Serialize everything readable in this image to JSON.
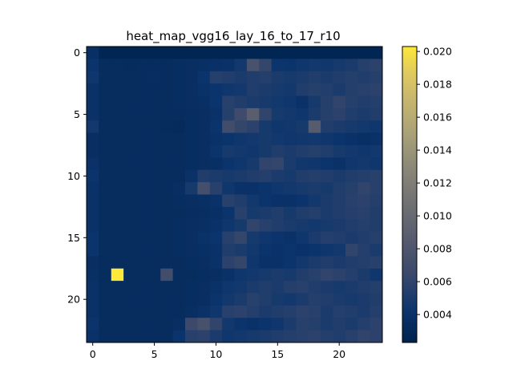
{
  "chart_data": {
    "type": "heatmap",
    "title": "heat_map_vgg16_lay_16_to_17_r10",
    "xlabel": "",
    "ylabel": "",
    "rows": 24,
    "cols": 24,
    "x_ticks": [
      0,
      5,
      10,
      15,
      20
    ],
    "y_ticks": [
      0,
      5,
      10,
      15,
      20
    ],
    "colormap": "cividis",
    "colorbar_range": [
      0.0023,
      0.0203
    ],
    "colorbar_ticks": [
      "0.004",
      "0.006",
      "0.008",
      "0.010",
      "0.012",
      "0.014",
      "0.016",
      "0.018",
      "0.020"
    ],
    "colorbar_tick_values": [
      0.004,
      0.006,
      0.008,
      0.01,
      0.012,
      0.014,
      0.016,
      0.018,
      0.02
    ],
    "grid": false,
    "values": [
      [
        0.0038,
        0.0027,
        0.0027,
        0.0027,
        0.0027,
        0.0027,
        0.0027,
        0.0027,
        0.0027,
        0.0027,
        0.0027,
        0.0027,
        0.0027,
        0.0027,
        0.0027,
        0.0027,
        0.0027,
        0.0027,
        0.0027,
        0.0027,
        0.0027,
        0.0027,
        0.0027,
        0.0027
      ],
      [
        0.0042,
        0.0034,
        0.0034,
        0.0033,
        0.0034,
        0.0034,
        0.0034,
        0.0035,
        0.0036,
        0.0038,
        0.0039,
        0.004,
        0.0046,
        0.0075,
        0.0062,
        0.0043,
        0.0042,
        0.0044,
        0.0046,
        0.0045,
        0.0048,
        0.005,
        0.0055,
        0.0058
      ],
      [
        0.0044,
        0.0034,
        0.0034,
        0.0034,
        0.0034,
        0.0035,
        0.0034,
        0.0035,
        0.0036,
        0.0042,
        0.0055,
        0.0052,
        0.005,
        0.0052,
        0.0054,
        0.005,
        0.0048,
        0.005,
        0.0052,
        0.005,
        0.0052,
        0.0054,
        0.0052,
        0.0055
      ],
      [
        0.004,
        0.0034,
        0.0034,
        0.0034,
        0.0034,
        0.0034,
        0.0034,
        0.0035,
        0.0036,
        0.004,
        0.0042,
        0.0044,
        0.0046,
        0.0052,
        0.005,
        0.0048,
        0.0046,
        0.0052,
        0.0055,
        0.0053,
        0.005,
        0.0054,
        0.0056,
        0.0058
      ],
      [
        0.004,
        0.0034,
        0.0034,
        0.0034,
        0.0034,
        0.0034,
        0.0034,
        0.0035,
        0.0036,
        0.0038,
        0.0042,
        0.0056,
        0.0052,
        0.005,
        0.0048,
        0.0046,
        0.0044,
        0.004,
        0.0048,
        0.0055,
        0.006,
        0.0055,
        0.0052,
        0.0054
      ],
      [
        0.004,
        0.0034,
        0.0034,
        0.0034,
        0.0034,
        0.0034,
        0.0034,
        0.0034,
        0.0035,
        0.0036,
        0.004,
        0.0055,
        0.0068,
        0.0088,
        0.006,
        0.0048,
        0.0046,
        0.0044,
        0.005,
        0.0055,
        0.0058,
        0.0052,
        0.005,
        0.0052
      ],
      [
        0.0046,
        0.0034,
        0.0034,
        0.0034,
        0.0034,
        0.0034,
        0.0033,
        0.0032,
        0.0035,
        0.0036,
        0.0042,
        0.007,
        0.0062,
        0.0058,
        0.0048,
        0.0044,
        0.0045,
        0.0048,
        0.0085,
        0.0052,
        0.005,
        0.0048,
        0.0046,
        0.0044
      ],
      [
        0.0036,
        0.0034,
        0.0034,
        0.0034,
        0.0034,
        0.0034,
        0.0034,
        0.0034,
        0.0035,
        0.0036,
        0.004,
        0.0042,
        0.0044,
        0.0046,
        0.0048,
        0.0046,
        0.0044,
        0.0045,
        0.0046,
        0.0044,
        0.0042,
        0.004,
        0.0038,
        0.004
      ],
      [
        0.0036,
        0.0034,
        0.0034,
        0.0034,
        0.0034,
        0.0034,
        0.0034,
        0.0034,
        0.0035,
        0.0036,
        0.0042,
        0.0048,
        0.0046,
        0.0044,
        0.0048,
        0.0052,
        0.005,
        0.0052,
        0.0055,
        0.0052,
        0.0048,
        0.0046,
        0.0044,
        0.0046
      ],
      [
        0.004,
        0.0034,
        0.0034,
        0.0034,
        0.0034,
        0.0034,
        0.0034,
        0.0034,
        0.0035,
        0.0036,
        0.0038,
        0.0042,
        0.0044,
        0.0048,
        0.006,
        0.0062,
        0.005,
        0.0045,
        0.0044,
        0.0042,
        0.004,
        0.0044,
        0.0046,
        0.0044
      ],
      [
        0.0042,
        0.0034,
        0.0034,
        0.0034,
        0.0034,
        0.0034,
        0.0034,
        0.0034,
        0.004,
        0.0052,
        0.005,
        0.0048,
        0.005,
        0.0052,
        0.0054,
        0.005,
        0.0048,
        0.0052,
        0.0054,
        0.0052,
        0.005,
        0.0052,
        0.0054,
        0.0056
      ],
      [
        0.004,
        0.0034,
        0.0034,
        0.0034,
        0.0034,
        0.0034,
        0.0034,
        0.0036,
        0.0048,
        0.0072,
        0.0056,
        0.0044,
        0.004,
        0.004,
        0.0042,
        0.0044,
        0.0046,
        0.0048,
        0.005,
        0.0048,
        0.0052,
        0.0055,
        0.006,
        0.0056
      ],
      [
        0.004,
        0.0034,
        0.0034,
        0.0034,
        0.0034,
        0.0034,
        0.0034,
        0.0035,
        0.0036,
        0.0038,
        0.004,
        0.0056,
        0.0052,
        0.0046,
        0.0042,
        0.004,
        0.004,
        0.0042,
        0.0046,
        0.005,
        0.0052,
        0.0056,
        0.0058,
        0.0054
      ],
      [
        0.004,
        0.0034,
        0.0034,
        0.0034,
        0.0034,
        0.0034,
        0.0034,
        0.0034,
        0.0035,
        0.0036,
        0.0038,
        0.0042,
        0.0056,
        0.0048,
        0.005,
        0.0052,
        0.0048,
        0.0052,
        0.0054,
        0.005,
        0.0052,
        0.0054,
        0.0056,
        0.0052
      ],
      [
        0.004,
        0.0034,
        0.0034,
        0.0034,
        0.0034,
        0.0034,
        0.0034,
        0.0035,
        0.0036,
        0.0038,
        0.004,
        0.0044,
        0.0048,
        0.006,
        0.0056,
        0.0052,
        0.005,
        0.0048,
        0.0046,
        0.0048,
        0.005,
        0.0052,
        0.0054,
        0.0052
      ],
      [
        0.0042,
        0.0034,
        0.0034,
        0.0034,
        0.0034,
        0.0034,
        0.0034,
        0.0035,
        0.0036,
        0.004,
        0.0042,
        0.0056,
        0.0062,
        0.0048,
        0.0044,
        0.0042,
        0.004,
        0.0044,
        0.005,
        0.0054,
        0.0052,
        0.005,
        0.0052,
        0.0055
      ],
      [
        0.0042,
        0.0034,
        0.0034,
        0.0034,
        0.0034,
        0.0034,
        0.0034,
        0.0035,
        0.0036,
        0.0038,
        0.004,
        0.0052,
        0.005,
        0.0046,
        0.0042,
        0.004,
        0.0042,
        0.004,
        0.0042,
        0.0044,
        0.0046,
        0.006,
        0.0054,
        0.005
      ],
      [
        0.0036,
        0.0034,
        0.0034,
        0.0034,
        0.0034,
        0.0034,
        0.0034,
        0.0034,
        0.0035,
        0.0036,
        0.004,
        0.0058,
        0.0062,
        0.0044,
        0.004,
        0.004,
        0.0042,
        0.0046,
        0.005,
        0.0052,
        0.005,
        0.0052,
        0.0054,
        0.0056
      ],
      [
        0.0038,
        0.0034,
        0.0203,
        0.0034,
        0.0034,
        0.0034,
        0.007,
        0.0034,
        0.0034,
        0.0035,
        0.0036,
        0.004,
        0.0044,
        0.0046,
        0.0048,
        0.005,
        0.0048,
        0.0052,
        0.0056,
        0.006,
        0.0058,
        0.0054,
        0.005,
        0.0044
      ],
      [
        0.004,
        0.0034,
        0.0034,
        0.0034,
        0.0034,
        0.0034,
        0.0034,
        0.0034,
        0.0035,
        0.0036,
        0.004,
        0.0044,
        0.0046,
        0.005,
        0.0052,
        0.005,
        0.0054,
        0.0056,
        0.0052,
        0.005,
        0.0048,
        0.005,
        0.0052,
        0.0054
      ],
      [
        0.004,
        0.0034,
        0.0034,
        0.0034,
        0.0034,
        0.0034,
        0.0034,
        0.0034,
        0.0035,
        0.0036,
        0.0042,
        0.0046,
        0.005,
        0.0056,
        0.0052,
        0.0048,
        0.0046,
        0.005,
        0.0054,
        0.0052,
        0.005,
        0.0048,
        0.005,
        0.0052
      ],
      [
        0.004,
        0.0034,
        0.0034,
        0.0034,
        0.0034,
        0.0034,
        0.0034,
        0.0034,
        0.0036,
        0.004,
        0.0044,
        0.0056,
        0.0058,
        0.0054,
        0.005,
        0.0052,
        0.0054,
        0.0058,
        0.0056,
        0.005,
        0.0054,
        0.0052,
        0.005,
        0.0054
      ],
      [
        0.0042,
        0.0034,
        0.0034,
        0.0034,
        0.0034,
        0.0034,
        0.0034,
        0.0036,
        0.0066,
        0.0074,
        0.006,
        0.0046,
        0.0042,
        0.004,
        0.0042,
        0.0044,
        0.005,
        0.0056,
        0.0054,
        0.005,
        0.0052,
        0.005,
        0.0054,
        0.0058
      ],
      [
        0.004,
        0.0034,
        0.0034,
        0.0034,
        0.0034,
        0.0034,
        0.0034,
        0.0042,
        0.0056,
        0.0058,
        0.005,
        0.0044,
        0.0046,
        0.0048,
        0.005,
        0.0052,
        0.0054,
        0.0056,
        0.0058,
        0.0054,
        0.0052,
        0.0056,
        0.006,
        0.0058
      ]
    ]
  }
}
